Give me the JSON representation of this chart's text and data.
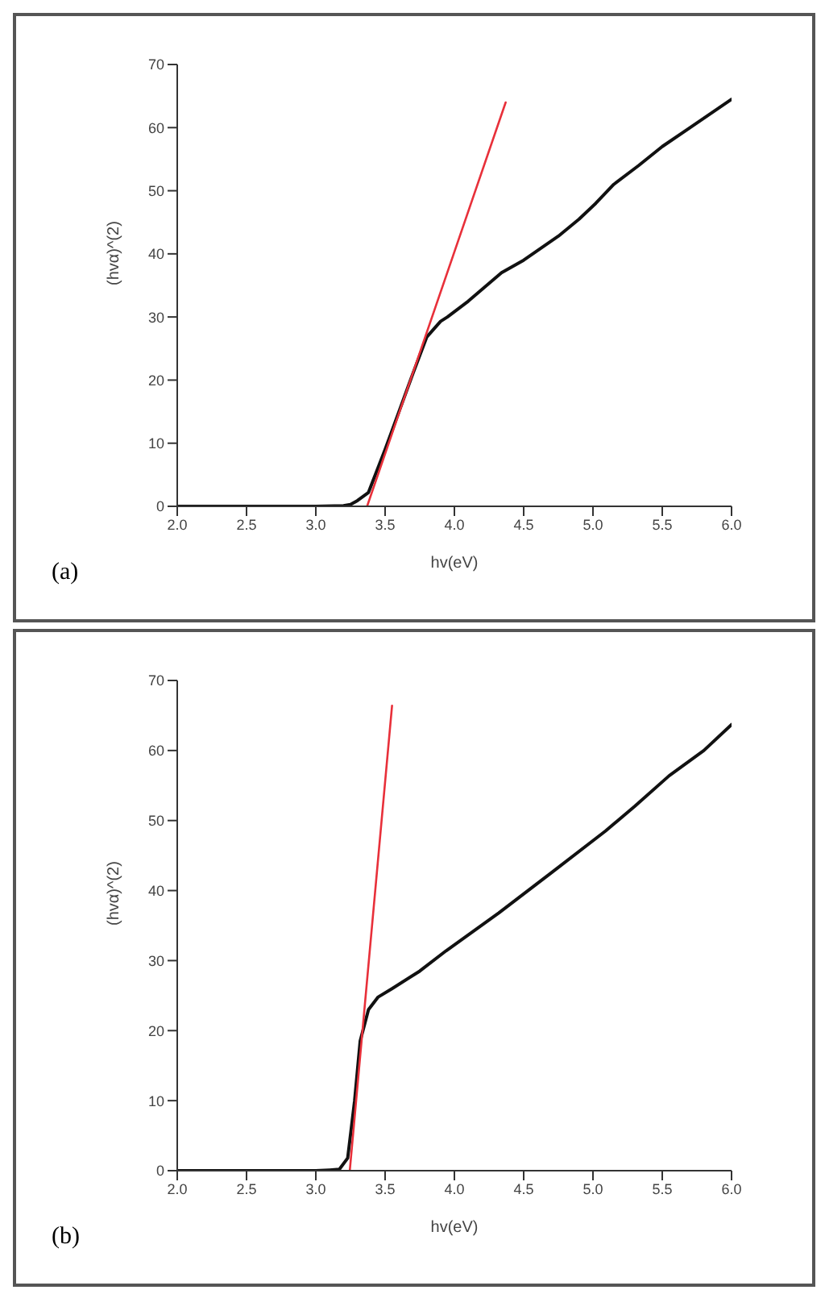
{
  "chart_data": [
    {
      "type": "line",
      "xlabel": "hv(eV)",
      "ylabel": "(hvα)^(2)",
      "annotations": [
        "(a)"
      ],
      "xlim": [
        2,
        6
      ],
      "xticks": [
        {
          "value": 2,
          "label": "2.0"
        },
        2.5,
        {
          "value": 3,
          "label": "3.0"
        },
        3.5,
        {
          "value": 4,
          "label": "4.0"
        },
        4.5,
        {
          "value": 5,
          "label": "5.0"
        },
        5.5,
        {
          "value": 6,
          "label": "6.0"
        }
      ],
      "ylim": [
        0,
        70
      ],
      "yticks": [
        0,
        10,
        20,
        30,
        40,
        50,
        60,
        70
      ],
      "grid": false,
      "marker": "none",
      "line_style": "solid",
      "series": [
        {
          "color": "#111111",
          "x": [
            2.0,
            2.5,
            3.0,
            3.2,
            3.25,
            3.3,
            3.38,
            3.5,
            3.6,
            3.7,
            3.8,
            3.9,
            3.95,
            4.1,
            4.34,
            4.5,
            4.75,
            4.9,
            5.02,
            5.15,
            5.33,
            5.5,
            5.7,
            6.0
          ],
          "values": [
            0,
            0,
            0,
            0.1,
            0.3,
            0.9,
            2.2,
            9,
            15,
            21,
            26.8,
            29.3,
            30,
            32.5,
            37,
            39,
            42.8,
            45.5,
            48,
            51,
            54,
            57,
            60,
            64.5
          ]
        },
        {
          "color": "#e8303a",
          "x": [
            3.37,
            4.37
          ],
          "values": [
            0,
            64
          ]
        }
      ]
    },
    {
      "type": "line",
      "xlabel": "hv(eV)",
      "ylabel": "(hvα)^(2)",
      "annotations": [
        "(b)"
      ],
      "xlim": [
        2,
        6
      ],
      "xticks": [
        {
          "value": 2,
          "label": "2.0"
        },
        2.5,
        {
          "value": 3,
          "label": "3.0"
        },
        3.5,
        {
          "value": 4,
          "label": "4.0"
        },
        4.5,
        {
          "value": 5,
          "label": "5.0"
        },
        5.5,
        {
          "value": 6,
          "label": "6.0"
        }
      ],
      "ylim": [
        0,
        70
      ],
      "yticks": [
        0,
        10,
        20,
        30,
        40,
        50,
        60,
        70
      ],
      "grid": false,
      "marker": "none",
      "line_style": "solid",
      "series": [
        {
          "color": "#111111",
          "x": [
            2.0,
            2.5,
            3.0,
            3.1,
            3.17,
            3.23,
            3.28,
            3.32,
            3.38,
            3.45,
            3.55,
            3.75,
            3.94,
            4.32,
            4.71,
            5.09,
            5.3,
            5.55,
            5.8,
            6.0
          ],
          "values": [
            0,
            0,
            0,
            0.1,
            0.2,
            1.8,
            10,
            18.5,
            23,
            24.8,
            26,
            28.5,
            31.4,
            36.8,
            42.7,
            48.5,
            52,
            56.4,
            60,
            63.7
          ]
        },
        {
          "color": "#e8303a",
          "x": [
            3.245,
            3.55
          ],
          "values": [
            0,
            66.4
          ]
        }
      ]
    }
  ]
}
